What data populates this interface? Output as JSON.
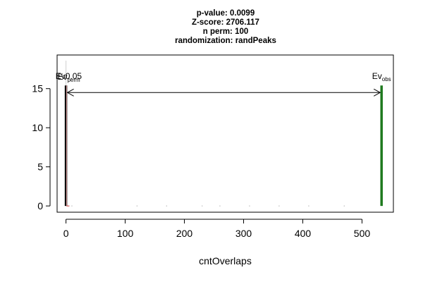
{
  "chart_data": {
    "type": "histogram",
    "title_lines": [
      "p-value:  0.0099",
      "Z-score:  2706.117",
      "n perm:  100",
      "randomization:  randPeaks"
    ],
    "xlabel": "cntOverlaps",
    "ylabel": "",
    "xlim": [
      -15,
      553
    ],
    "ylim": [
      -0.8,
      19.3
    ],
    "x_ticks": [
      0,
      100,
      200,
      300,
      400,
      500
    ],
    "y_ticks": [
      0,
      5,
      10,
      15
    ],
    "grid": false,
    "permuted_distribution": {
      "x": [
        0
      ],
      "y": [
        15.4
      ],
      "color": "#000000"
    },
    "threshold": {
      "label": "Ev",
      "sub": "0.05",
      "x": 1,
      "color": "#e0a0a0"
    },
    "mean_permuted": {
      "label": "Ev",
      "sub": "perm",
      "x": 0,
      "y": 15.4,
      "color": "#000000"
    },
    "observed": {
      "label": "Ev",
      "sub": "obs",
      "x": 533,
      "y": 15.4,
      "color": "#1e7a1e"
    },
    "arrow": {
      "x_from": 0,
      "x_to": 533,
      "y": 14.5
    },
    "baseline_dots_x": [
      10,
      120,
      170,
      230,
      260,
      310,
      360,
      410,
      470
    ]
  }
}
